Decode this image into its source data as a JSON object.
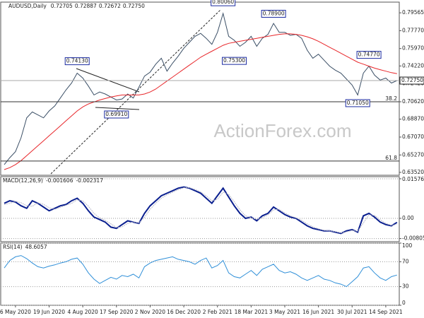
{
  "chart_data": [
    {
      "type": "line",
      "panel": "price",
      "title": "AUDUSD,Daily",
      "ohlc": [
        "0.72705",
        "0.72887",
        "0.72672",
        "0.72750"
      ],
      "watermark": "ActionForex.com",
      "categories": [
        null,
        null,
        "6 May 2020",
        null,
        null,
        null,
        null,
        null,
        "19 Jun 2020",
        null,
        null,
        null,
        null,
        null,
        "4 Aug 2020",
        null,
        null,
        null,
        null,
        null,
        "17 Sep 2020",
        null,
        null,
        null,
        null,
        null,
        "2 Nov 2020",
        null,
        null,
        null,
        null,
        null,
        "16 Dec 2020",
        null,
        null,
        null,
        null,
        null,
        "2 Feb 2021",
        null,
        null,
        null,
        null,
        null,
        "18 Mar 2021",
        null,
        null,
        null,
        null,
        null,
        "3 May 2021",
        null,
        null,
        null,
        null,
        null,
        "16 Jun 2021",
        null,
        null,
        null,
        null,
        null,
        "30 Jul 2021",
        null,
        null,
        null,
        null,
        null,
        "14 Sep 2021",
        null,
        null
      ],
      "series": [
        {
          "color": "#3b4f66",
          "values": [
            0.643,
            0.65,
            0.656,
            0.67,
            0.69,
            0.696,
            0.693,
            0.69,
            0.697,
            0.702,
            0.71,
            0.718,
            0.725,
            0.735,
            0.73,
            0.722,
            0.713,
            0.716,
            0.714,
            0.711,
            0.708,
            0.709,
            0.714,
            0.71,
            0.721,
            0.732,
            0.736,
            0.744,
            0.75,
            0.737,
            0.745,
            0.752,
            0.76,
            0.766,
            0.772,
            0.775,
            0.77,
            0.764,
            0.776,
            0.795,
            0.772,
            0.768,
            0.762,
            0.766,
            0.772,
            0.762,
            0.77,
            0.774,
            0.785,
            0.776,
            0.776,
            0.773,
            0.774,
            0.77,
            0.758,
            0.75,
            0.754,
            0.748,
            0.742,
            0.738,
            0.735,
            0.729,
            0.723,
            0.713,
            0.735,
            0.742,
            0.733,
            0.728,
            0.73,
            0.725,
            0.7275
          ]
        },
        {
          "color": "#e8262a",
          "values": [
            0.638,
            0.64,
            0.643,
            0.647,
            0.652,
            0.657,
            0.662,
            0.667,
            0.672,
            0.677,
            0.682,
            0.687,
            0.692,
            0.697,
            0.701,
            0.704,
            0.706,
            0.708,
            0.7095,
            0.711,
            0.712,
            0.713,
            0.713,
            0.713,
            0.713,
            0.714,
            0.716,
            0.719,
            0.723,
            0.727,
            0.731,
            0.735,
            0.739,
            0.743,
            0.747,
            0.751,
            0.754,
            0.757,
            0.76,
            0.763,
            0.765,
            0.766,
            0.767,
            0.768,
            0.769,
            0.77,
            0.771,
            0.772,
            0.773,
            0.774,
            0.7745,
            0.7745,
            0.774,
            0.773,
            0.7715,
            0.7695,
            0.767,
            0.764,
            0.761,
            0.758,
            0.755,
            0.752,
            0.749,
            0.746,
            0.744,
            0.742,
            0.74,
            0.7385,
            0.737,
            0.7355,
            0.7345
          ]
        }
      ],
      "current": {
        "value": 0.7275,
        "label": "0.72750"
      },
      "annotations": [
        {
          "index": 13,
          "value": 0.7413,
          "label": "0.74130"
        },
        {
          "index": 20,
          "value": 0.6991,
          "label": "0.69910"
        },
        {
          "index": 39,
          "value": 0.8006,
          "label": "0.80060"
        },
        {
          "index": 41,
          "value": 0.753,
          "label": "0.75300"
        },
        {
          "index": 48,
          "value": 0.789,
          "label": "0.78900"
        },
        {
          "index": 63,
          "value": 0.7105,
          "label": "0.71050"
        },
        {
          "index": 65,
          "value": 0.7477,
          "label": "0.74770"
        }
      ],
      "hlines": [
        {
          "value": 0.7062,
          "label": "38.2"
        },
        {
          "value": 0.6466,
          "label": "61.8"
        }
      ],
      "ylim": [
        0.6323,
        0.8064
      ],
      "yticks": [
        {
          "value": 0.79565,
          "label": "0.79565"
        },
        {
          "value": 0.7777,
          "label": "0.77770"
        },
        {
          "value": 0.7597,
          "label": "0.75970"
        },
        {
          "value": 0.7422,
          "label": "0.74220"
        },
        {
          "value": 0.7242,
          "label": "0.72420"
        },
        {
          "value": 0.7062,
          "label": "0.70620"
        },
        {
          "value": 0.6887,
          "label": "0.68870"
        },
        {
          "value": 0.6707,
          "label": "0.67070"
        },
        {
          "value": 0.6527,
          "label": "0.65270"
        },
        {
          "value": 0.6352,
          "label": "0.63520"
        }
      ],
      "grid": false
    },
    {
      "type": "line",
      "panel": "macd",
      "title": "MACD(12,26,9)",
      "series": [
        {
          "color": "#0a1f8f",
          "values": [
            0.006,
            0.007,
            0.0065,
            0.005,
            0.004,
            0.007,
            0.006,
            0.0045,
            0.003,
            0.004,
            0.005,
            0.0055,
            0.007,
            0.008,
            0.006,
            0.003,
            0.0005,
            -0.0005,
            -0.0015,
            -0.0035,
            -0.004,
            -0.0025,
            -0.001,
            -0.0015,
            -0.002,
            0.002,
            0.005,
            0.007,
            0.009,
            0.01,
            0.011,
            0.012,
            0.0125,
            0.012,
            0.011,
            0.01,
            0.008,
            0.006,
            0.009,
            0.012,
            0.0085,
            0.005,
            0.002,
            0.0,
            0.0005,
            -0.001,
            0.001,
            0.002,
            0.0045,
            0.003,
            0.0015,
            0.0005,
            0.0,
            -0.0015,
            -0.003,
            -0.004,
            -0.0045,
            -0.005,
            -0.005,
            -0.0055,
            -0.006,
            -0.005,
            -0.0045,
            -0.0055,
            0.001,
            0.002,
            0.0005,
            -0.0015,
            -0.0025,
            -0.003,
            -0.001606
          ]
        },
        {
          "color": "#b8b8c8",
          "values": [
            0.0055,
            0.006,
            0.0068,
            0.0062,
            0.005,
            0.0048,
            0.0062,
            0.0056,
            0.0042,
            0.0036,
            0.0044,
            0.0052,
            0.006,
            0.0074,
            0.007,
            0.0048,
            0.002,
            0.0002,
            -0.0008,
            -0.0022,
            -0.0036,
            -0.0034,
            -0.002,
            -0.0014,
            -0.0018,
            0.0004,
            0.0036,
            0.006,
            0.008,
            0.0094,
            0.0104,
            0.0114,
            0.0122,
            0.0122,
            0.0115,
            0.0105,
            0.009,
            0.007,
            0.0076,
            0.0104,
            0.0096,
            0.0066,
            0.0034,
            0.001,
            0.0002,
            -0.0004,
            0.0002,
            0.0014,
            0.0034,
            0.0036,
            0.0022,
            0.001,
            0.0002,
            -0.0008,
            -0.0022,
            -0.0034,
            -0.0042,
            -0.0048,
            -0.005,
            -0.0053,
            -0.0058,
            -0.0054,
            -0.0048,
            -0.0052,
            -0.0018,
            0.0014,
            0.0012,
            -0.0006,
            -0.002,
            -0.0028,
            -0.002317
          ]
        }
      ],
      "ylim": [
        -0.0093,
        0.0166
      ],
      "yticks": [
        0.015768,
        {
          "value": 0,
          "label": "0.00"
        },
        -0.008053
      ],
      "grid": true
    },
    {
      "type": "line",
      "panel": "rsi",
      "title": "RSI(14)",
      "series": [
        {
          "color": "#2f8fd8",
          "values": [
            60,
            72,
            78,
            80,
            75,
            68,
            62,
            60,
            63,
            65,
            68,
            70,
            74,
            76,
            66,
            52,
            42,
            35,
            40,
            45,
            42,
            48,
            46,
            50,
            44,
            62,
            68,
            72,
            74,
            76,
            78,
            74,
            72,
            70,
            66,
            72,
            76,
            60,
            64,
            72,
            52,
            46,
            44,
            50,
            56,
            48,
            58,
            62,
            66,
            56,
            52,
            54,
            50,
            44,
            40,
            44,
            48,
            42,
            40,
            36,
            34,
            30,
            38,
            46,
            60,
            62,
            52,
            44,
            40,
            46,
            48.6057
          ]
        }
      ],
      "ylim": [
        0,
        100
      ],
      "yticks": [
        100,
        70,
        30,
        0
      ],
      "grid": true
    }
  ]
}
